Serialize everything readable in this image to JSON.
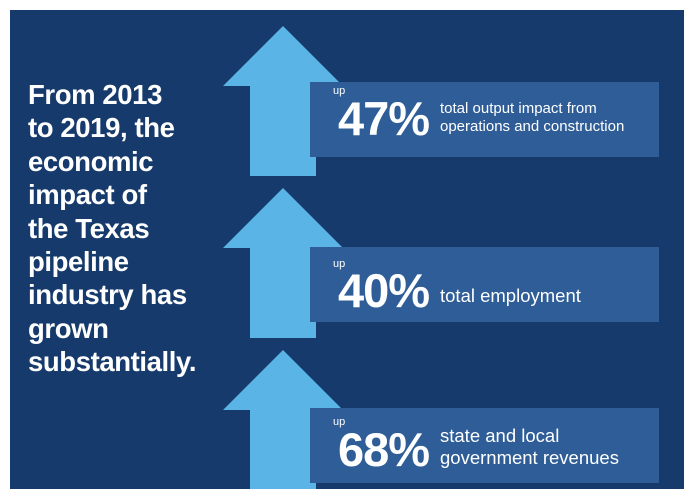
{
  "headline": {
    "lines": [
      "From 2013",
      "to 2019, the",
      "economic",
      "impact of",
      "the Texas",
      "pipeline",
      "industry has",
      "grown",
      "substantially."
    ]
  },
  "stats": [
    {
      "prefix": "up",
      "percent": "47%",
      "lines": [
        "total output impact from",
        "operations and construction"
      ]
    },
    {
      "prefix": "up",
      "percent": "40%",
      "lines": [
        "total employment"
      ]
    },
    {
      "prefix": "up",
      "percent": "68%",
      "lines": [
        "state and local",
        "government revenues"
      ]
    }
  ],
  "colors": {
    "background": "#153a6b",
    "band": "#2e5d97",
    "arrow": "#5ab4e6",
    "text": "#ffffff"
  }
}
